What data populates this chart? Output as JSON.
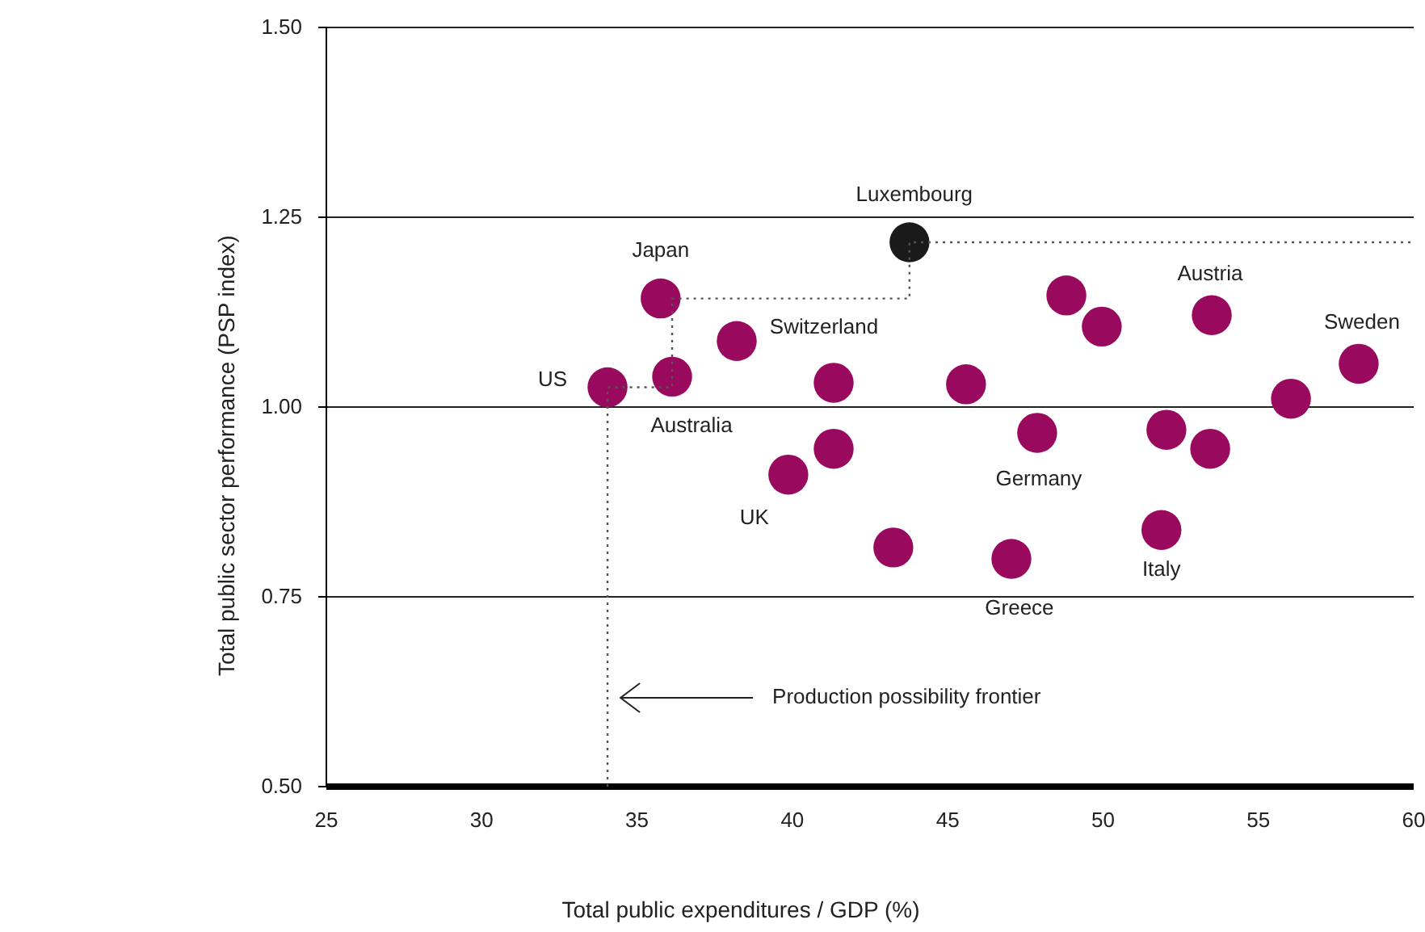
{
  "chart_data": {
    "type": "scatter",
    "xlabel": "Total public expenditures / GDP (%)",
    "ylabel": "Total public sector performance (PSP index)",
    "xlim": [
      25,
      60
    ],
    "xticks": [
      25,
      30,
      35,
      40,
      45,
      50,
      55,
      60
    ],
    "ylim": [
      0.5,
      1.5
    ],
    "yticks": [
      {
        "value": 0.5,
        "label": "0.50"
      },
      {
        "value": 0.75,
        "label": "0.75"
      },
      {
        "value": 1.0,
        "label": "1.00"
      },
      {
        "value": 1.25,
        "label": "1.25"
      },
      {
        "value": 1.5,
        "label": "1.50"
      }
    ],
    "grid": "y",
    "marker": "circle",
    "series": [
      {
        "x": [
          34.05,
          35.76,
          36.13,
          38.21,
          41.33,
          41.33,
          39.87,
          43.25,
          43.77,
          45.59,
          47.88,
          47.05,
          48.82,
          49.96,
          52.04,
          51.88,
          53.5,
          53.45,
          56.05,
          58.23
        ],
        "values": [
          1.026,
          1.143,
          1.04,
          1.087,
          1.032,
          0.945,
          0.911,
          0.815,
          1.217,
          1.03,
          0.966,
          0.8,
          1.147,
          1.106,
          0.97,
          0.838,
          1.121,
          0.945,
          1.011,
          1.057
        ],
        "colors": [
          "#990a5e",
          "#990a5e",
          "#990a5e",
          "#990a5e",
          "#990a5e",
          "#990a5e",
          "#990a5e",
          "#990a5e",
          "#1a1a1a",
          "#990a5e",
          "#990a5e",
          "#990a5e",
          "#990a5e",
          "#990a5e",
          "#990a5e",
          "#990a5e",
          "#990a5e",
          "#990a5e",
          "#990a5e",
          "#990a5e"
        ]
      },
      {
        "type": "line",
        "color": "#555555",
        "line_style": "dotted",
        "marker": "none",
        "x": [
          34.05,
          34.05,
          36.13,
          36.13,
          43.77,
          43.77,
          60
        ],
        "values": [
          0.5,
          1.026,
          1.026,
          1.143,
          1.143,
          1.217,
          1.217
        ]
      }
    ],
    "annotations": [
      {
        "text": "Luxembourg",
        "x": 43.77,
        "y": 1.217
      },
      {
        "text": "Japan",
        "x": 35.76,
        "y": 1.143
      },
      {
        "text": "US",
        "x": 34.05,
        "y": 1.026
      },
      {
        "text": "Australia",
        "x": 36.13,
        "y": 1.04
      },
      {
        "text": "Switzerland",
        "x": 38.21,
        "y": 1.087
      },
      {
        "text": "UK",
        "x": 39.87,
        "y": 0.911
      },
      {
        "text": "Germany",
        "x": 47.88,
        "y": 0.966
      },
      {
        "text": "Greece",
        "x": 47.05,
        "y": 0.8
      },
      {
        "text": "Austria",
        "x": 53.5,
        "y": 1.121
      },
      {
        "text": "Italy",
        "x": 51.88,
        "y": 0.838
      },
      {
        "text": "Sweden",
        "x": 58.23,
        "y": 1.057
      },
      {
        "text": "Production possibility frontier",
        "x": 34.26,
        "y": 0.617
      }
    ]
  }
}
